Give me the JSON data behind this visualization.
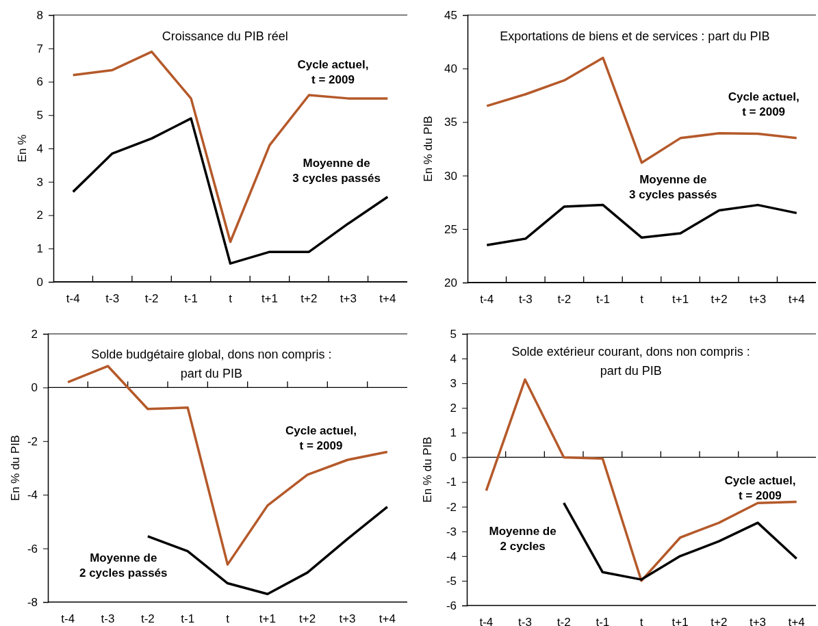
{
  "chart_data": [
    {
      "type": "line",
      "title": "Croissance du PIB réel",
      "ylabel": "En %",
      "categories": [
        "t-4",
        "t-3",
        "t-2",
        "t-1",
        "t",
        "t+1",
        "t+2",
        "t+3",
        "t+4"
      ],
      "ylim": [
        0,
        8
      ],
      "yticks": [
        0,
        1,
        2,
        3,
        4,
        5,
        6,
        7,
        8
      ],
      "series": [
        {
          "name": "Cycle actuel,\nt = 2009",
          "color": "#b5592a",
          "values": [
            6.2,
            6.35,
            6.9,
            5.5,
            1.2,
            4.1,
            5.6,
            5.5,
            5.5
          ]
        },
        {
          "name": "Moyenne de\n3 cycles passés",
          "color": "#000000",
          "values": [
            2.7,
            3.85,
            4.3,
            4.9,
            0.55,
            0.9,
            0.9,
            1.75,
            2.55
          ]
        }
      ]
    },
    {
      "type": "line",
      "title": "Exportations de biens et de services : part du PIB",
      "ylabel": "En % du PIB",
      "categories": [
        "t-4",
        "t-3",
        "t-2",
        "t-1",
        "t",
        "t+1",
        "t+2",
        "t+3",
        "t+4"
      ],
      "ylim": [
        20,
        45
      ],
      "yticks": [
        20,
        25,
        30,
        35,
        40,
        45
      ],
      "series": [
        {
          "name": "Cycle actuel,\nt = 2009",
          "color": "#b5592a",
          "values": [
            36.5,
            37.6,
            38.9,
            41.0,
            31.2,
            33.5,
            33.95,
            33.9,
            33.5
          ]
        },
        {
          "name": "Moyenne de\n3 cycles passés",
          "color": "#000000",
          "values": [
            23.5,
            24.1,
            27.1,
            27.25,
            24.2,
            24.6,
            26.75,
            27.25,
            26.5
          ]
        }
      ]
    },
    {
      "type": "line",
      "title": "Solde budgétaire global, dons non compris :\npart du PIB",
      "ylabel": "En % du PIB",
      "categories": [
        "t-4",
        "t-3",
        "t-2",
        "t-1",
        "t",
        "t+1",
        "t+2",
        "t+3",
        "t+4"
      ],
      "ylim": [
        -8,
        2
      ],
      "yticks": [
        -8,
        -6,
        -4,
        -2,
        0,
        2
      ],
      "series": [
        {
          "name": "Cycle actuel,\nt = 2009",
          "color": "#b5592a",
          "values": [
            0.2,
            0.8,
            -0.8,
            -0.75,
            -6.6,
            -4.4,
            -3.25,
            -2.7,
            -2.4
          ]
        },
        {
          "name": "Moyenne de\n2 cycles passés",
          "color": "#000000",
          "values": [
            null,
            null,
            -5.55,
            -6.1,
            -7.3,
            -7.7,
            -6.9,
            -5.65,
            -4.45
          ]
        }
      ]
    },
    {
      "type": "line",
      "title": "Solde extérieur courant, dons non compris :\npart du PIB",
      "ylabel": "En % du PIB",
      "categories": [
        "t-4",
        "t-3",
        "t-2",
        "t-1",
        "t",
        "t+1",
        "t+2",
        "t+3",
        "t+4"
      ],
      "ylim": [
        -6,
        5
      ],
      "yticks": [
        -6,
        -5,
        -4,
        -3,
        -2,
        -1,
        0,
        1,
        2,
        3,
        4,
        5
      ],
      "series": [
        {
          "name": "Cycle actuel,\nt = 2009",
          "color": "#b5592a",
          "values": [
            -1.35,
            3.15,
            0.0,
            -0.05,
            -5.0,
            -3.25,
            -2.65,
            -1.85,
            -1.8
          ]
        },
        {
          "name": "Moyenne de\n2 cycles",
          "color": "#000000",
          "values": [
            null,
            null,
            -1.85,
            -4.65,
            -4.95,
            -4.0,
            -3.4,
            -2.65,
            -4.1
          ]
        }
      ]
    }
  ]
}
